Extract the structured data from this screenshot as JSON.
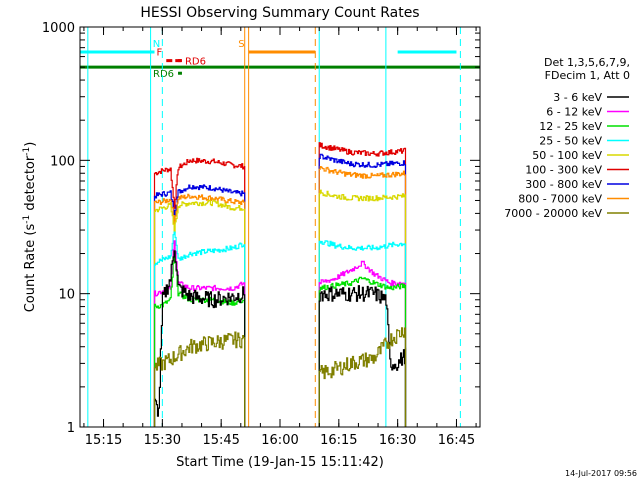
{
  "chart_data": {
    "type": "line",
    "title": "HESSI Observing Summary Count Rates",
    "xlabel": "Start Time (19-Jan-15 15:11:42)",
    "ylabel_main": "Count Rate (s",
    "ylabel_sup1": "-1",
    "ylabel_mid": " detector",
    "ylabel_sup2": "-1",
    "ylabel_end": ")",
    "y_scale": "log",
    "ylim": [
      1,
      1000
    ],
    "xlim": [
      "15:09",
      "16:51"
    ],
    "x_tick_labels": [
      "15:15",
      "15:30",
      "15:45",
      "16:00",
      "16:15",
      "16:30",
      "16:45"
    ],
    "y_tick_labels": [
      "1",
      "10",
      "100",
      "1000"
    ],
    "timestamp": "14-Jul-2017 09:56",
    "legend": {
      "placement": "right",
      "header_line1": "Det 1,3,5,6,7,9,",
      "header_line2": "FDecim 1, Att 0",
      "entries": [
        {
          "label": "3 - 6 keV",
          "color": "#000000"
        },
        {
          "label": "6 - 12 keV",
          "color": "#ff00ff"
        },
        {
          "label": "12 - 25 keV",
          "color": "#00e000"
        },
        {
          "label": "25 - 50 keV",
          "color": "#00ffff"
        },
        {
          "label": "50 - 100 keV",
          "color": "#d8d800"
        },
        {
          "label": "100 - 300 keV",
          "color": "#e00000"
        },
        {
          "label": "300 - 800 keV",
          "color": "#0000e0"
        },
        {
          "label": "800 - 7000 keV",
          "color": "#ff8c00"
        },
        {
          "label": "7000 - 20000 keV",
          "color": "#808000"
        }
      ]
    },
    "flags": [
      {
        "label": "N",
        "color": "#00ffff",
        "segments": [
          [
            "15:09",
            "15:28"
          ],
          [
            "16:30",
            "16:45"
          ]
        ],
        "y": 650
      },
      {
        "label": "S",
        "color": "#ff8c00",
        "segments": [
          [
            "15:52",
            "16:09"
          ]
        ],
        "y": 650
      },
      {
        "label": "F",
        "color": "#e00000",
        "segments": [
          [
            "15:31",
            "15:35"
          ]
        ],
        "y": 560
      },
      {
        "label": "RD6",
        "color": "#e00000",
        "segments": [
          [
            "15:34",
            "15:35"
          ]
        ],
        "y": 560
      },
      {
        "label": "RD6",
        "color": "#008000",
        "segments": [
          [
            "15:34",
            "15:35"
          ]
        ],
        "y": 450
      }
    ],
    "reference_line": {
      "color": "#008000",
      "y": 500
    },
    "vlines": [
      {
        "t": "15:11",
        "color": "#00ffff",
        "style": "solid"
      },
      {
        "t": "15:27",
        "color": "#00ffff",
        "style": "solid"
      },
      {
        "t": "15:30",
        "color": "#00ffff",
        "style": "dashed"
      },
      {
        "t": "15:51",
        "color": "#ff8c00",
        "style": "solid"
      },
      {
        "t": "15:52",
        "color": "#ff8c00",
        "style": "solid"
      },
      {
        "t": "16:09",
        "color": "#ff8c00",
        "style": "dashed"
      },
      {
        "t": "16:10",
        "color": "#00ffff",
        "style": "solid"
      },
      {
        "t": "16:27",
        "color": "#00ffff",
        "style": "solid"
      },
      {
        "t": "16:46",
        "color": "#00ffff",
        "style": "dashed"
      }
    ],
    "segments": [
      {
        "start": "15:28",
        "end": "15:51",
        "series": [
          {
            "color": "#e00000",
            "pts": [
              [
                "15:28",
                80
              ],
              [
                "15:30",
                84
              ],
              [
                "15:32",
                86
              ],
              [
                "15:33",
                45
              ],
              [
                "15:34",
                88
              ],
              [
                "15:37",
                100
              ],
              [
                "15:43",
                98
              ],
              [
                "15:48",
                92
              ],
              [
                "15:51",
                90
              ]
            ]
          },
          {
            "color": "#0000e0",
            "pts": [
              [
                "15:28",
                54
              ],
              [
                "15:30",
                56
              ],
              [
                "15:32",
                57
              ],
              [
                "15:33",
                40
              ],
              [
                "15:34",
                58
              ],
              [
                "15:37",
                64
              ],
              [
                "15:43",
                62
              ],
              [
                "15:48",
                57
              ],
              [
                "15:51",
                56
              ]
            ]
          },
          {
            "color": "#ff8c00",
            "pts": [
              [
                "15:28",
                48
              ],
              [
                "15:30",
                49
              ],
              [
                "15:32",
                51
              ],
              [
                "15:33",
                35
              ],
              [
                "15:34",
                52
              ],
              [
                "15:37",
                54
              ],
              [
                "15:43",
                52
              ],
              [
                "15:48",
                49
              ],
              [
                "15:51",
                48
              ]
            ]
          },
          {
            "color": "#d8d800",
            "pts": [
              [
                "15:28",
                42
              ],
              [
                "15:30",
                44
              ],
              [
                "15:32",
                46
              ],
              [
                "15:33",
                30
              ],
              [
                "15:34",
                46
              ],
              [
                "15:37",
                48
              ],
              [
                "15:43",
                48
              ],
              [
                "15:48",
                44
              ],
              [
                "15:51",
                44
              ]
            ]
          },
          {
            "color": "#00ffff",
            "pts": [
              [
                "15:28",
                17
              ],
              [
                "15:30",
                18
              ],
              [
                "15:32",
                19
              ],
              [
                "15:33",
                30
              ],
              [
                "15:34",
                18
              ],
              [
                "15:37",
                20
              ],
              [
                "15:43",
                21
              ],
              [
                "15:48",
                22
              ],
              [
                "15:51",
                24
              ]
            ]
          },
          {
            "color": "#ff00ff",
            "pts": [
              [
                "15:28",
                10
              ],
              [
                "15:30",
                10.5
              ],
              [
                "15:32",
                11
              ],
              [
                "15:33",
                26
              ],
              [
                "15:34",
                12
              ],
              [
                "15:37",
                11
              ],
              [
                "15:43",
                11
              ],
              [
                "15:48",
                11
              ],
              [
                "15:51",
                12
              ]
            ]
          },
          {
            "color": "#00e000",
            "pts": [
              [
                "15:28",
                8
              ],
              [
                "15:30",
                8.2
              ],
              [
                "15:32",
                9
              ],
              [
                "15:33",
                20
              ],
              [
                "15:34",
                10
              ],
              [
                "15:37",
                9
              ],
              [
                "15:43",
                9
              ],
              [
                "15:48",
                8.5
              ],
              [
                "15:51",
                9
              ]
            ]
          },
          {
            "color": "#000000",
            "pts": [
              [
                "15:28",
                1.5
              ],
              [
                "15:29",
                1.3
              ],
              [
                "15:30",
                9
              ],
              [
                "15:32",
                13
              ],
              [
                "15:33",
                23
              ],
              [
                "15:34",
                11
              ],
              [
                "15:37",
                9.5
              ],
              [
                "15:43",
                9
              ],
              [
                "15:48",
                9.5
              ],
              [
                "15:51",
                10
              ]
            ]
          },
          {
            "color": "#808000",
            "pts": [
              [
                "15:28",
                2.8
              ],
              [
                "15:30",
                3
              ],
              [
                "15:32",
                3.2
              ],
              [
                "15:34",
                3.5
              ],
              [
                "15:37",
                4
              ],
              [
                "15:43",
                4.3
              ],
              [
                "15:48",
                4.5
              ],
              [
                "15:51",
                4.5
              ]
            ]
          }
        ]
      },
      {
        "start": "16:10",
        "end": "16:32",
        "series": [
          {
            "color": "#e00000",
            "pts": [
              [
                "16:10",
                130
              ],
              [
                "16:14",
                122
              ],
              [
                "16:18",
                115
              ],
              [
                "16:24",
                112
              ],
              [
                "16:28",
                115
              ],
              [
                "16:32",
                118
              ]
            ]
          },
          {
            "color": "#0000e0",
            "pts": [
              [
                "16:10",
                108
              ],
              [
                "16:14",
                100
              ],
              [
                "16:18",
                94
              ],
              [
                "16:24",
                92
              ],
              [
                "16:28",
                94
              ],
              [
                "16:32",
                96
              ]
            ]
          },
          {
            "color": "#ff8c00",
            "pts": [
              [
                "16:10",
                88
              ],
              [
                "16:14",
                82
              ],
              [
                "16:18",
                78
              ],
              [
                "16:24",
                76
              ],
              [
                "16:28",
                78
              ],
              [
                "16:32",
                80
              ]
            ]
          },
          {
            "color": "#d8d800",
            "pts": [
              [
                "16:10",
                58
              ],
              [
                "16:14",
                54
              ],
              [
                "16:18",
                52
              ],
              [
                "16:24",
                52
              ],
              [
                "16:28",
                53
              ],
              [
                "16:32",
                54
              ]
            ]
          },
          {
            "color": "#00ffff",
            "pts": [
              [
                "16:10",
                25
              ],
              [
                "16:14",
                23
              ],
              [
                "16:18",
                22
              ],
              [
                "16:24",
                22
              ],
              [
                "16:28",
                23
              ],
              [
                "16:32",
                24
              ]
            ]
          },
          {
            "color": "#ff00ff",
            "pts": [
              [
                "16:10",
                12
              ],
              [
                "16:14",
                13
              ],
              [
                "16:18",
                15
              ],
              [
                "16:21",
                17
              ],
              [
                "16:24",
                14
              ],
              [
                "16:28",
                12
              ],
              [
                "16:32",
                12
              ]
            ]
          },
          {
            "color": "#00e000",
            "pts": [
              [
                "16:10",
                11
              ],
              [
                "16:14",
                11.5
              ],
              [
                "16:18",
                12
              ],
              [
                "16:21",
                13
              ],
              [
                "16:24",
                12
              ],
              [
                "16:28",
                11
              ],
              [
                "16:32",
                11.5
              ]
            ]
          },
          {
            "color": "#000000",
            "pts": [
              [
                "16:10",
                10
              ],
              [
                "16:14",
                10
              ],
              [
                "16:18",
                10
              ],
              [
                "16:24",
                10
              ],
              [
                "16:27",
                9
              ],
              [
                "16:28",
                3
              ],
              [
                "16:30",
                3
              ],
              [
                "16:32",
                3.5
              ]
            ]
          },
          {
            "color": "#808000",
            "pts": [
              [
                "16:10",
                2.5
              ],
              [
                "16:14",
                2.7
              ],
              [
                "16:18",
                3
              ],
              [
                "16:24",
                3.3
              ],
              [
                "16:28",
                4.5
              ],
              [
                "16:32",
                5.5
              ]
            ]
          }
        ]
      }
    ]
  }
}
